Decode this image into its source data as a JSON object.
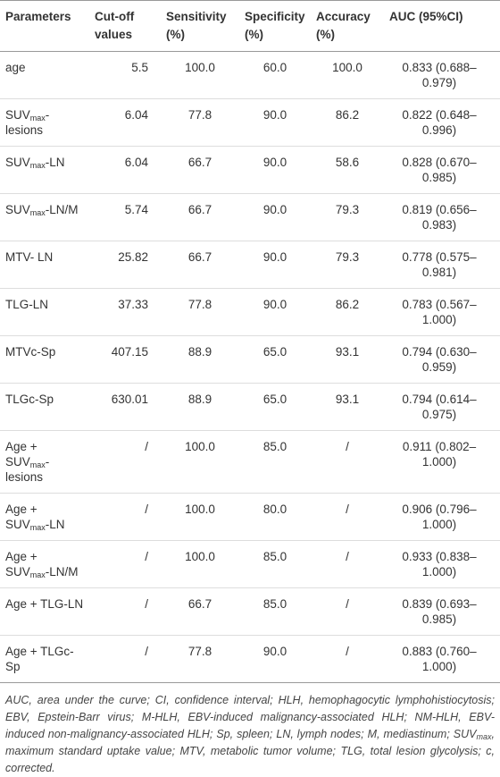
{
  "table": {
    "header": [
      [
        "Parameters"
      ],
      [
        "Cut-off values"
      ],
      [
        "Sensitivity (%)"
      ],
      [
        "Specificity (%)"
      ],
      [
        "Accuracy (%)"
      ],
      [
        "AUC (95%CI)"
      ]
    ],
    "rows": [
      [
        [
          "age"
        ],
        [
          "5.5"
        ],
        [
          "100.0"
        ],
        [
          "60.0"
        ],
        [
          "100.0"
        ],
        [
          "0.833 (0.688–0.979)"
        ]
      ],
      [
        [
          "SUV",
          "max",
          "-lesions"
        ],
        [
          "6.04"
        ],
        [
          "77.8"
        ],
        [
          "90.0"
        ],
        [
          "86.2"
        ],
        [
          "0.822 (0.648–0.996)"
        ]
      ],
      [
        [
          "SUV",
          "max",
          "-LN"
        ],
        [
          "6.04"
        ],
        [
          "66.7"
        ],
        [
          "90.0"
        ],
        [
          "58.6"
        ],
        [
          "0.828 (0.670–0.985)"
        ]
      ],
      [
        [
          "SUV",
          "max",
          "-LN/M"
        ],
        [
          "5.74"
        ],
        [
          "66.7"
        ],
        [
          "90.0"
        ],
        [
          "79.3"
        ],
        [
          "0.819 (0.656–0.983)"
        ]
      ],
      [
        [
          "MTV- LN"
        ],
        [
          "25.82"
        ],
        [
          "66.7"
        ],
        [
          "90.0"
        ],
        [
          "79.3"
        ],
        [
          "0.778 (0.575–0.981)"
        ]
      ],
      [
        [
          "TLG-LN"
        ],
        [
          "37.33"
        ],
        [
          "77.8"
        ],
        [
          "90.0"
        ],
        [
          "86.2"
        ],
        [
          "0.783 (0.567–1.000)"
        ]
      ],
      [
        [
          "MTVc-Sp"
        ],
        [
          "407.15"
        ],
        [
          "88.9"
        ],
        [
          "65.0"
        ],
        [
          "93.1"
        ],
        [
          "0.794 (0.630–0.959)"
        ]
      ],
      [
        [
          "TLGc-Sp"
        ],
        [
          "630.01"
        ],
        [
          "88.9"
        ],
        [
          "65.0"
        ],
        [
          "93.1"
        ],
        [
          "0.794 (0.614–0.975)"
        ]
      ],
      [
        [
          "Age + SUV",
          "max",
          "-lesions"
        ],
        [
          "/"
        ],
        [
          "100.0"
        ],
        [
          "85.0"
        ],
        [
          "/"
        ],
        [
          "0.911 (0.802–1.000)"
        ]
      ],
      [
        [
          "Age + SUV",
          "max",
          "-LN"
        ],
        [
          "/"
        ],
        [
          "100.0"
        ],
        [
          "80.0"
        ],
        [
          "/"
        ],
        [
          "0.906 (0.796–1.000)"
        ]
      ],
      [
        [
          "Age + SUV",
          "max",
          "-LN/M"
        ],
        [
          "/"
        ],
        [
          "100.0"
        ],
        [
          "85.0"
        ],
        [
          "/"
        ],
        [
          "0.933 (0.838–1.000)"
        ]
      ],
      [
        [
          "Age + TLG-LN"
        ],
        [
          "/"
        ],
        [
          "66.7"
        ],
        [
          "85.0"
        ],
        [
          "/"
        ],
        [
          "0.839 (0.693–0.985)"
        ]
      ],
      [
        [
          "Age + TLGc-Sp"
        ],
        [
          "/"
        ],
        [
          "77.8"
        ],
        [
          "90.0"
        ],
        [
          "/"
        ],
        [
          "0.883 (0.760–1.000)"
        ]
      ]
    ],
    "footnote": [
      "AUC, area under the curve; CI, confidence interval; HLH, hemophagocytic lymphohistiocytosis; EBV, Epstein-Barr virus; M-HLH, EBV-induced malignancy-associated HLH; NM-HLH, EBV-induced non-malignancy-associated HLH; Sp, spleen; LN, lymph nodes; M, mediastinum; SUV",
      "max",
      ", maximum standard uptake value; MTV, metabolic tumor volume; TLG, total lesion glycolysis; c, corrected."
    ]
  }
}
